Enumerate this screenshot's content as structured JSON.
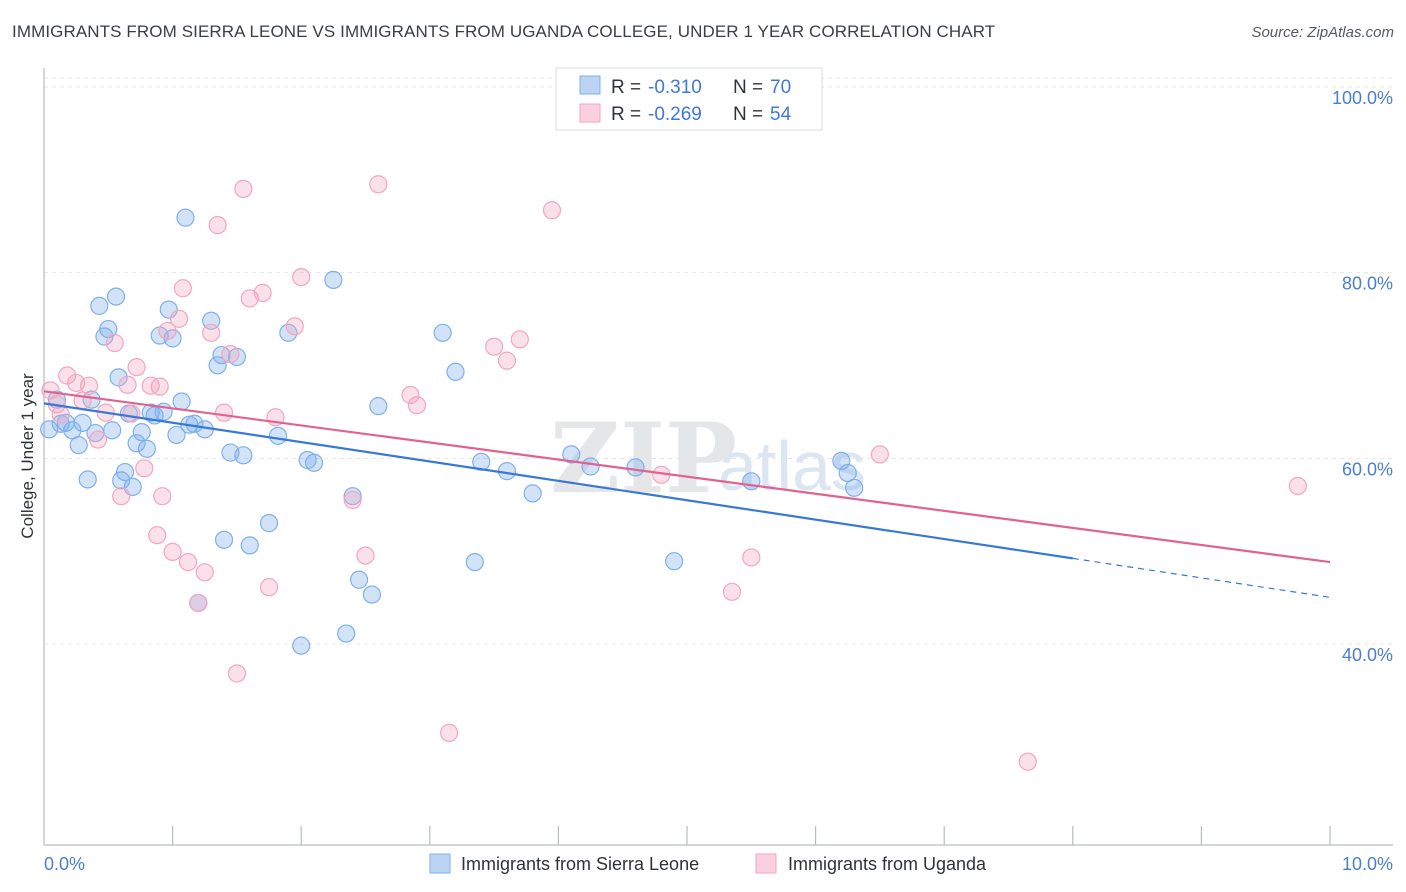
{
  "title": "IMMIGRANTS FROM SIERRA LEONE VS IMMIGRANTS FROM UGANDA COLLEGE, UNDER 1 YEAR CORRELATION CHART",
  "source": "Source: ZipAtlas.com",
  "watermark": {
    "zip": "ZIP",
    "atlas": "atlas"
  },
  "legend": {
    "r_label": "R =",
    "n_label": "N =",
    "rows": [
      {
        "r": "-0.310",
        "n": "70"
      },
      {
        "r": "-0.269",
        "n": "54"
      }
    ]
  },
  "bottom_legend": [
    "Immigrants from Sierra Leone",
    "Immigrants from Uganda"
  ],
  "chart_data": {
    "type": "scatter",
    "title": "IMMIGRANTS FROM SIERRA LEONE VS IMMIGRANTS FROM UGANDA COLLEGE, UNDER 1 YEAR CORRELATION CHART",
    "xlabel": "",
    "ylabel": "College, Under 1 year",
    "x_tick_labels": [
      "0.0%",
      "10.0%"
    ],
    "y_tick_labels": [
      "100.0%",
      "80.0%",
      "60.0%",
      "40.0%"
    ],
    "xlim": [
      0,
      10
    ],
    "ylim": [
      20,
      104
    ],
    "y_ticks": [
      100,
      80,
      60,
      40
    ],
    "grid": true,
    "legend_position": "top-center",
    "series": [
      {
        "name": "Immigrants from Sierra Leone",
        "color": "#7fb0ea",
        "line_color": "#3a78d6",
        "r": -0.31,
        "n": 70,
        "trend": {
          "x0": 0.0,
          "y0": 67.0,
          "x1": 8.0,
          "y1": 50.3,
          "x_dash_end": 10.0,
          "y_dash_end": 46.1
        },
        "points": [
          [
            0.04,
            64.2
          ],
          [
            0.1,
            67.4
          ],
          [
            0.13,
            64.8
          ],
          [
            0.17,
            64.9
          ],
          [
            0.22,
            64.1
          ],
          [
            0.27,
            62.5
          ],
          [
            0.3,
            64.9
          ],
          [
            0.34,
            58.8
          ],
          [
            0.37,
            67.4
          ],
          [
            0.4,
            63.8
          ],
          [
            0.43,
            77.5
          ],
          [
            0.47,
            74.2
          ],
          [
            0.5,
            75.0
          ],
          [
            0.53,
            64.1
          ],
          [
            0.56,
            78.5
          ],
          [
            0.58,
            69.8
          ],
          [
            0.6,
            58.7
          ],
          [
            0.63,
            59.6
          ],
          [
            0.66,
            65.9
          ],
          [
            0.69,
            58.0
          ],
          [
            0.72,
            62.7
          ],
          [
            0.76,
            63.9
          ],
          [
            0.8,
            62.1
          ],
          [
            0.83,
            66.0
          ],
          [
            0.86,
            65.7
          ],
          [
            0.9,
            74.3
          ],
          [
            0.93,
            66.1
          ],
          [
            0.97,
            77.1
          ],
          [
            1.0,
            74.0
          ],
          [
            1.03,
            63.6
          ],
          [
            1.07,
            67.2
          ],
          [
            1.1,
            87.0
          ],
          [
            1.13,
            64.7
          ],
          [
            1.17,
            64.8
          ],
          [
            1.2,
            45.5
          ],
          [
            1.25,
            64.2
          ],
          [
            1.3,
            75.9
          ],
          [
            1.35,
            71.1
          ],
          [
            1.38,
            72.2
          ],
          [
            1.4,
            52.3
          ],
          [
            1.45,
            61.7
          ],
          [
            1.5,
            72.0
          ],
          [
            1.55,
            61.4
          ],
          [
            1.6,
            51.7
          ],
          [
            1.75,
            54.1
          ],
          [
            1.82,
            63.5
          ],
          [
            1.9,
            74.6
          ],
          [
            2.0,
            40.9
          ],
          [
            2.05,
            60.9
          ],
          [
            2.1,
            60.6
          ],
          [
            2.25,
            80.3
          ],
          [
            2.35,
            42.2
          ],
          [
            2.4,
            57.0
          ],
          [
            2.45,
            48.0
          ],
          [
            2.55,
            46.4
          ],
          [
            2.6,
            66.7
          ],
          [
            3.1,
            74.6
          ],
          [
            3.2,
            70.4
          ],
          [
            3.35,
            49.9
          ],
          [
            3.4,
            60.7
          ],
          [
            3.6,
            59.7
          ],
          [
            3.8,
            57.3
          ],
          [
            4.1,
            61.5
          ],
          [
            4.25,
            60.2
          ],
          [
            4.6,
            60.1
          ],
          [
            4.9,
            50.0
          ],
          [
            5.5,
            58.6
          ],
          [
            6.2,
            60.8
          ],
          [
            6.3,
            57.9
          ],
          [
            6.25,
            59.5
          ]
        ]
      },
      {
        "name": "Immigrants from Uganda",
        "color": "#f2a6bf",
        "line_color": "#e2628f",
        "r": -0.269,
        "n": 54,
        "trend": {
          "x0": 0.0,
          "y0": 68.3,
          "x1": 10.0,
          "y1": 49.9
        },
        "points": [
          [
            0.05,
            68.4
          ],
          [
            0.1,
            66.9
          ],
          [
            0.13,
            65.8
          ],
          [
            0.18,
            70.0
          ],
          [
            0.25,
            69.2
          ],
          [
            0.3,
            67.3
          ],
          [
            0.35,
            68.9
          ],
          [
            0.42,
            63.1
          ],
          [
            0.48,
            66.0
          ],
          [
            0.55,
            73.5
          ],
          [
            0.6,
            57.0
          ],
          [
            0.65,
            69.0
          ],
          [
            0.68,
            65.9
          ],
          [
            0.72,
            70.9
          ],
          [
            0.78,
            60.0
          ],
          [
            0.83,
            68.9
          ],
          [
            0.88,
            52.8
          ],
          [
            0.92,
            57.0
          ],
          [
            0.96,
            74.8
          ],
          [
            1.0,
            51.0
          ],
          [
            1.05,
            76.1
          ],
          [
            1.08,
            79.4
          ],
          [
            1.12,
            49.9
          ],
          [
            1.2,
            45.5
          ],
          [
            1.25,
            48.8
          ],
          [
            1.3,
            74.6
          ],
          [
            1.35,
            86.2
          ],
          [
            1.4,
            66.0
          ],
          [
            1.45,
            72.3
          ],
          [
            1.5,
            37.9
          ],
          [
            1.55,
            90.1
          ],
          [
            1.6,
            78.3
          ],
          [
            1.7,
            78.9
          ],
          [
            1.75,
            47.2
          ],
          [
            1.8,
            65.5
          ],
          [
            1.95,
            75.3
          ],
          [
            2.0,
            80.6
          ],
          [
            2.4,
            56.6
          ],
          [
            2.5,
            50.6
          ],
          [
            2.6,
            90.6
          ],
          [
            2.85,
            67.9
          ],
          [
            2.9,
            66.8
          ],
          [
            3.15,
            31.5
          ],
          [
            3.5,
            73.1
          ],
          [
            3.6,
            71.6
          ],
          [
            3.7,
            73.9
          ],
          [
            3.95,
            87.8
          ],
          [
            4.8,
            59.3
          ],
          [
            5.5,
            50.4
          ],
          [
            5.35,
            46.7
          ],
          [
            6.5,
            61.5
          ],
          [
            7.65,
            28.4
          ],
          [
            9.75,
            58.1
          ],
          [
            0.9,
            68.8
          ]
        ]
      }
    ]
  }
}
